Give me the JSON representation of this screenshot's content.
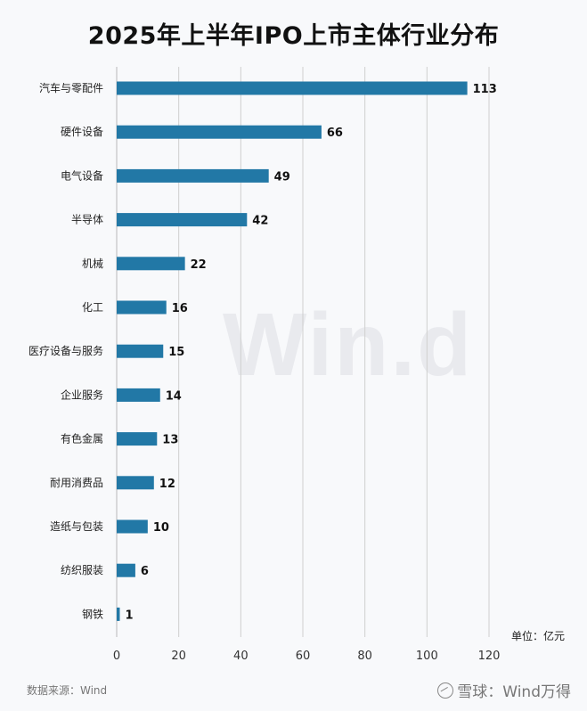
{
  "chart_data": {
    "type": "bar",
    "orientation": "horizontal",
    "title": "2025年上半年IPO上市主体行业分布",
    "categories": [
      "汽车与零配件",
      "硬件设备",
      "电气设备",
      "半导体",
      "机械",
      "化工",
      "医疗设备与服务",
      "企业服务",
      "有色金属",
      "耐用消费品",
      "造纸与包装",
      "纺织服装",
      "钢铁"
    ],
    "values": [
      113,
      66,
      49,
      42,
      22,
      16,
      15,
      14,
      13,
      12,
      10,
      6,
      1
    ],
    "xlim": [
      0,
      120
    ],
    "xticks": [
      0,
      20,
      40,
      60,
      80,
      100,
      120
    ],
    "grid": "vertical",
    "bar_color": "#2278a6",
    "unit": "单位：亿元"
  },
  "footer": {
    "source": "数据来源：Wind",
    "brand": "雪球：Wind万得"
  },
  "watermark": "Win.d"
}
